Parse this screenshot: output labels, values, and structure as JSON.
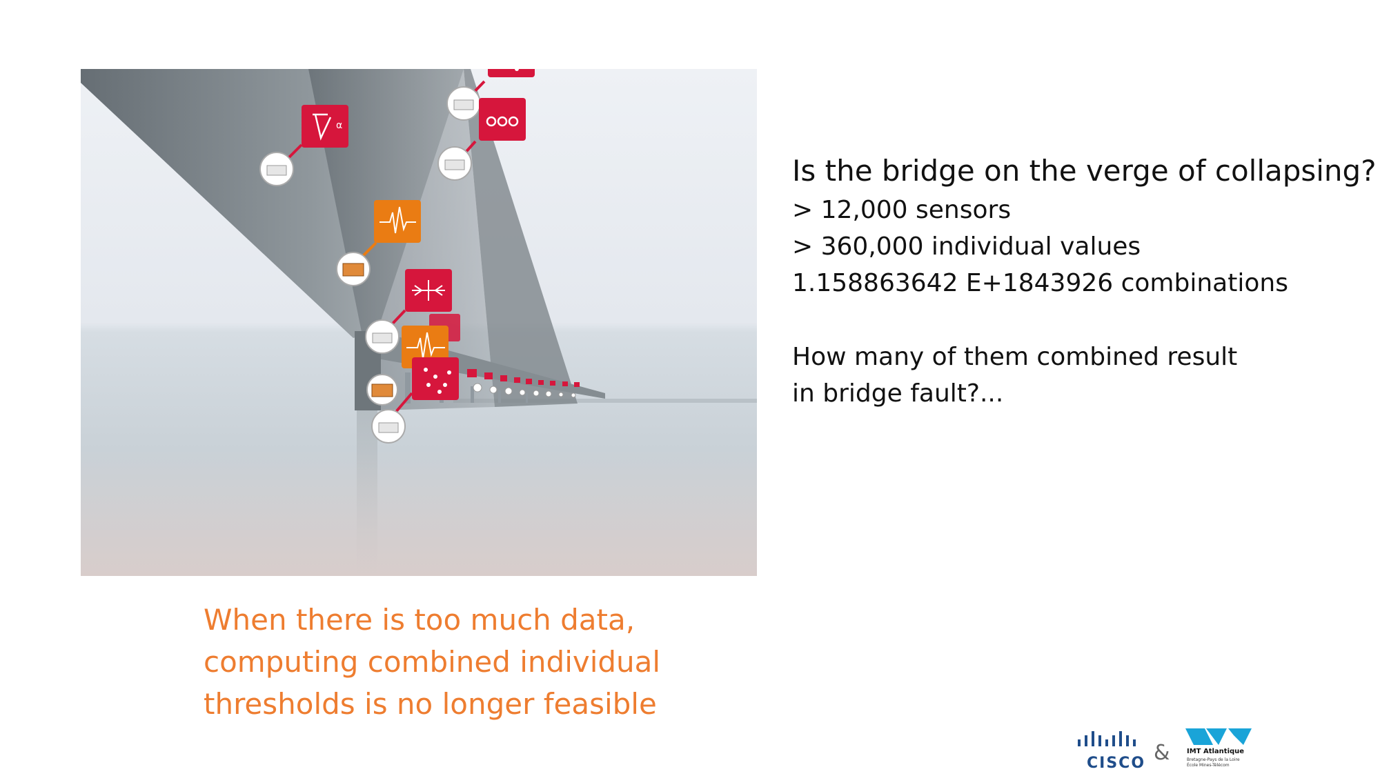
{
  "slide": {
    "headline": "Is the bridge on the verge of collapsing?",
    "facts": [
      "> 12,000 sensors",
      "> 360,000 individual values",
      "1.158863642 E+1843926 combinations"
    ],
    "question_lines": [
      "How many of them combined result",
      "in bridge fault?..."
    ],
    "caption_lines": [
      "When there is too much data,",
      "computing combined individual",
      "thresholds is no longer feasible"
    ]
  },
  "photo": {
    "sensor_icons": [
      "strain-gauge-icon",
      "humidity-icon",
      "particles-icon",
      "vibration-icon",
      "displacement-icon",
      "vibration-icon",
      "particles-icon"
    ],
    "sensor_labels": {
      "angle": "α"
    }
  },
  "logos": {
    "cisco": "CISCO",
    "ampersand": "&",
    "imt_name": "IMT Atlantique",
    "imt_sub_1": "Bretagne-Pays de la Loire",
    "imt_sub_2": "École Mines-Télécom"
  },
  "colors": {
    "caption": "#ee7d30",
    "sensor_red": "#d6163c",
    "sensor_orange": "#ea7c13",
    "cisco_blue": "#1f4d8a",
    "imt_cyan": "#1aa4d8"
  }
}
